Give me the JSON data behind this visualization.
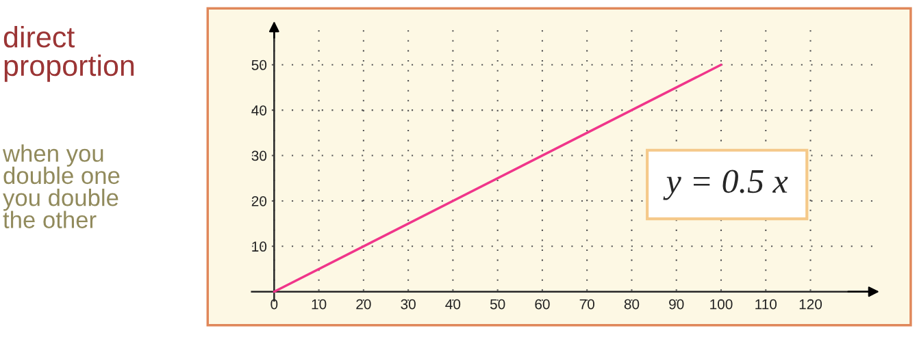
{
  "chart_data": {
    "type": "line",
    "title": "direct proportion",
    "subtitle": "when you double one you double the other",
    "x": [
      0,
      100
    ],
    "series": [
      {
        "color": "#f0358a",
        "values": [
          0,
          50
        ]
      }
    ],
    "xlim": [
      -5,
      134
    ],
    "ylim": [
      -2,
      59
    ],
    "xticks": [
      {
        "value": 0,
        "label": "0"
      },
      10,
      20,
      30,
      40,
      50,
      60,
      70,
      80,
      90,
      100,
      110,
      120
    ],
    "yticks": [
      10,
      20,
      30,
      40,
      50
    ],
    "annotations": [
      "y = 0.5 x"
    ],
    "grid": true,
    "marker": "none",
    "line_style": "solid"
  }
}
